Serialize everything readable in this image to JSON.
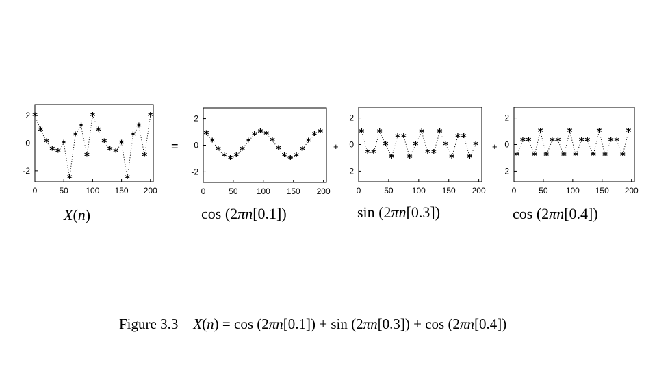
{
  "operators": {
    "equals": "=",
    "plus1": "+",
    "plus2": "+"
  },
  "labels": {
    "x": {
      "main": "X",
      "arg": "(",
      "n": "n",
      "close": ")"
    },
    "c1": {
      "fn": "cos",
      "open": " (2",
      "pi": "π",
      "n": "n",
      "rest": "[0.1])"
    },
    "c2": {
      "fn": "sin",
      "open": " (2",
      "pi": "π",
      "n": "n",
      "rest": "[0.3])"
    },
    "c3": {
      "fn": "cos",
      "open": " (2",
      "pi": "π",
      "n": "n",
      "rest": "[0.4])"
    }
  },
  "caption": {
    "prefix": "Figure 3.3",
    "X": "X",
    "n": "n",
    "eq": ") = cos (2",
    "pi1": "π",
    "n1": "n",
    "mid1": "[0.1]) + sin (2",
    "pi2": "π",
    "n2": "n",
    "mid2": "[0.3]) + cos (2",
    "pi3": "π",
    "n3": "n",
    "end": "[0.4])"
  },
  "chart_data": [
    {
      "type": "scatter",
      "marker": "*",
      "connector": "dotted",
      "x": [
        0,
        10,
        20,
        30,
        40,
        50,
        60,
        70,
        80,
        90,
        100,
        110,
        120,
        130,
        140,
        150,
        160,
        170,
        180,
        190,
        200
      ],
      "y": [
        2.0,
        0.95,
        0.1,
        -0.45,
        -0.6,
        0.0,
        -2.5,
        0.6,
        1.25,
        -0.9,
        2.0,
        0.95,
        0.1,
        -0.45,
        -0.6,
        0.0,
        -2.5,
        0.6,
        1.25,
        -0.9,
        2.0
      ],
      "xlim": [
        0,
        205
      ],
      "ylim": [
        -2.8,
        2.8
      ],
      "xticks": [
        0,
        50,
        100,
        150,
        200
      ],
      "yticks": [
        2,
        0,
        -2
      ],
      "xticklabels": [
        "0",
        "50",
        "100",
        "150",
        "200"
      ],
      "yticklabels": [
        "2",
        "0",
        "-2"
      ]
    },
    {
      "type": "scatter",
      "marker": "*",
      "connector": "dotted",
      "x": [
        5,
        15,
        25,
        35,
        45,
        55,
        65,
        75,
        85,
        95,
        105,
        115,
        125,
        135,
        145,
        155,
        165,
        175,
        185,
        195
      ],
      "y": [
        0.88,
        0.3,
        -0.3,
        -0.8,
        -1.0,
        -0.8,
        -0.3,
        0.3,
        0.8,
        1.0,
        0.85,
        0.35,
        -0.25,
        -0.8,
        -1.0,
        -0.8,
        -0.3,
        0.3,
        0.8,
        1.0
      ],
      "xlim": [
        0,
        205
      ],
      "ylim": [
        -2.8,
        2.8
      ],
      "xticks": [
        0,
        50,
        100,
        150,
        200
      ],
      "yticks": [
        2,
        0,
        -2
      ],
      "xticklabels": [
        "0",
        "50",
        "100",
        "150",
        "200"
      ],
      "yticklabels": [
        "2",
        "0",
        "-2"
      ]
    },
    {
      "type": "scatter",
      "marker": "*",
      "connector": "dotted",
      "x": [
        5,
        15,
        25,
        35,
        45,
        55,
        65,
        75,
        85,
        95,
        105,
        115,
        125,
        135,
        145,
        155,
        165,
        175,
        185,
        195
      ],
      "y": [
        0.95,
        -0.6,
        -0.6,
        0.95,
        0.0,
        -0.95,
        0.6,
        0.6,
        -0.95,
        0.0,
        0.95,
        -0.6,
        -0.6,
        0.95,
        0.0,
        -0.95,
        0.6,
        0.6,
        -0.95,
        0.0
      ],
      "xlim": [
        0,
        205
      ],
      "ylim": [
        -2.8,
        2.8
      ],
      "xticks": [
        0,
        50,
        100,
        150,
        200
      ],
      "yticks": [
        2,
        0,
        -2
      ],
      "xticklabels": [
        "0",
        "50",
        "100",
        "150",
        "200"
      ],
      "yticklabels": [
        "2",
        "0",
        "-2"
      ]
    },
    {
      "type": "scatter",
      "marker": "*",
      "connector": "dotted",
      "x": [
        5,
        15,
        25,
        35,
        45,
        55,
        65,
        75,
        85,
        95,
        105,
        115,
        125,
        135,
        145,
        155,
        165,
        175,
        185,
        195
      ],
      "y": [
        -0.8,
        0.3,
        0.3,
        -0.8,
        1.0,
        -0.8,
        0.3,
        0.3,
        -0.8,
        1.0,
        -0.8,
        0.3,
        0.3,
        -0.8,
        1.0,
        -0.8,
        0.3,
        0.3,
        -0.8,
        1.0
      ],
      "xlim": [
        0,
        205
      ],
      "ylim": [
        -2.8,
        2.8
      ],
      "xticks": [
        0,
        50,
        100,
        150,
        200
      ],
      "yticks": [
        2,
        0,
        -2
      ],
      "xticklabels": [
        "0",
        "50",
        "100",
        "150",
        "200"
      ],
      "yticklabels": [
        "2",
        "0",
        "-2"
      ]
    }
  ]
}
